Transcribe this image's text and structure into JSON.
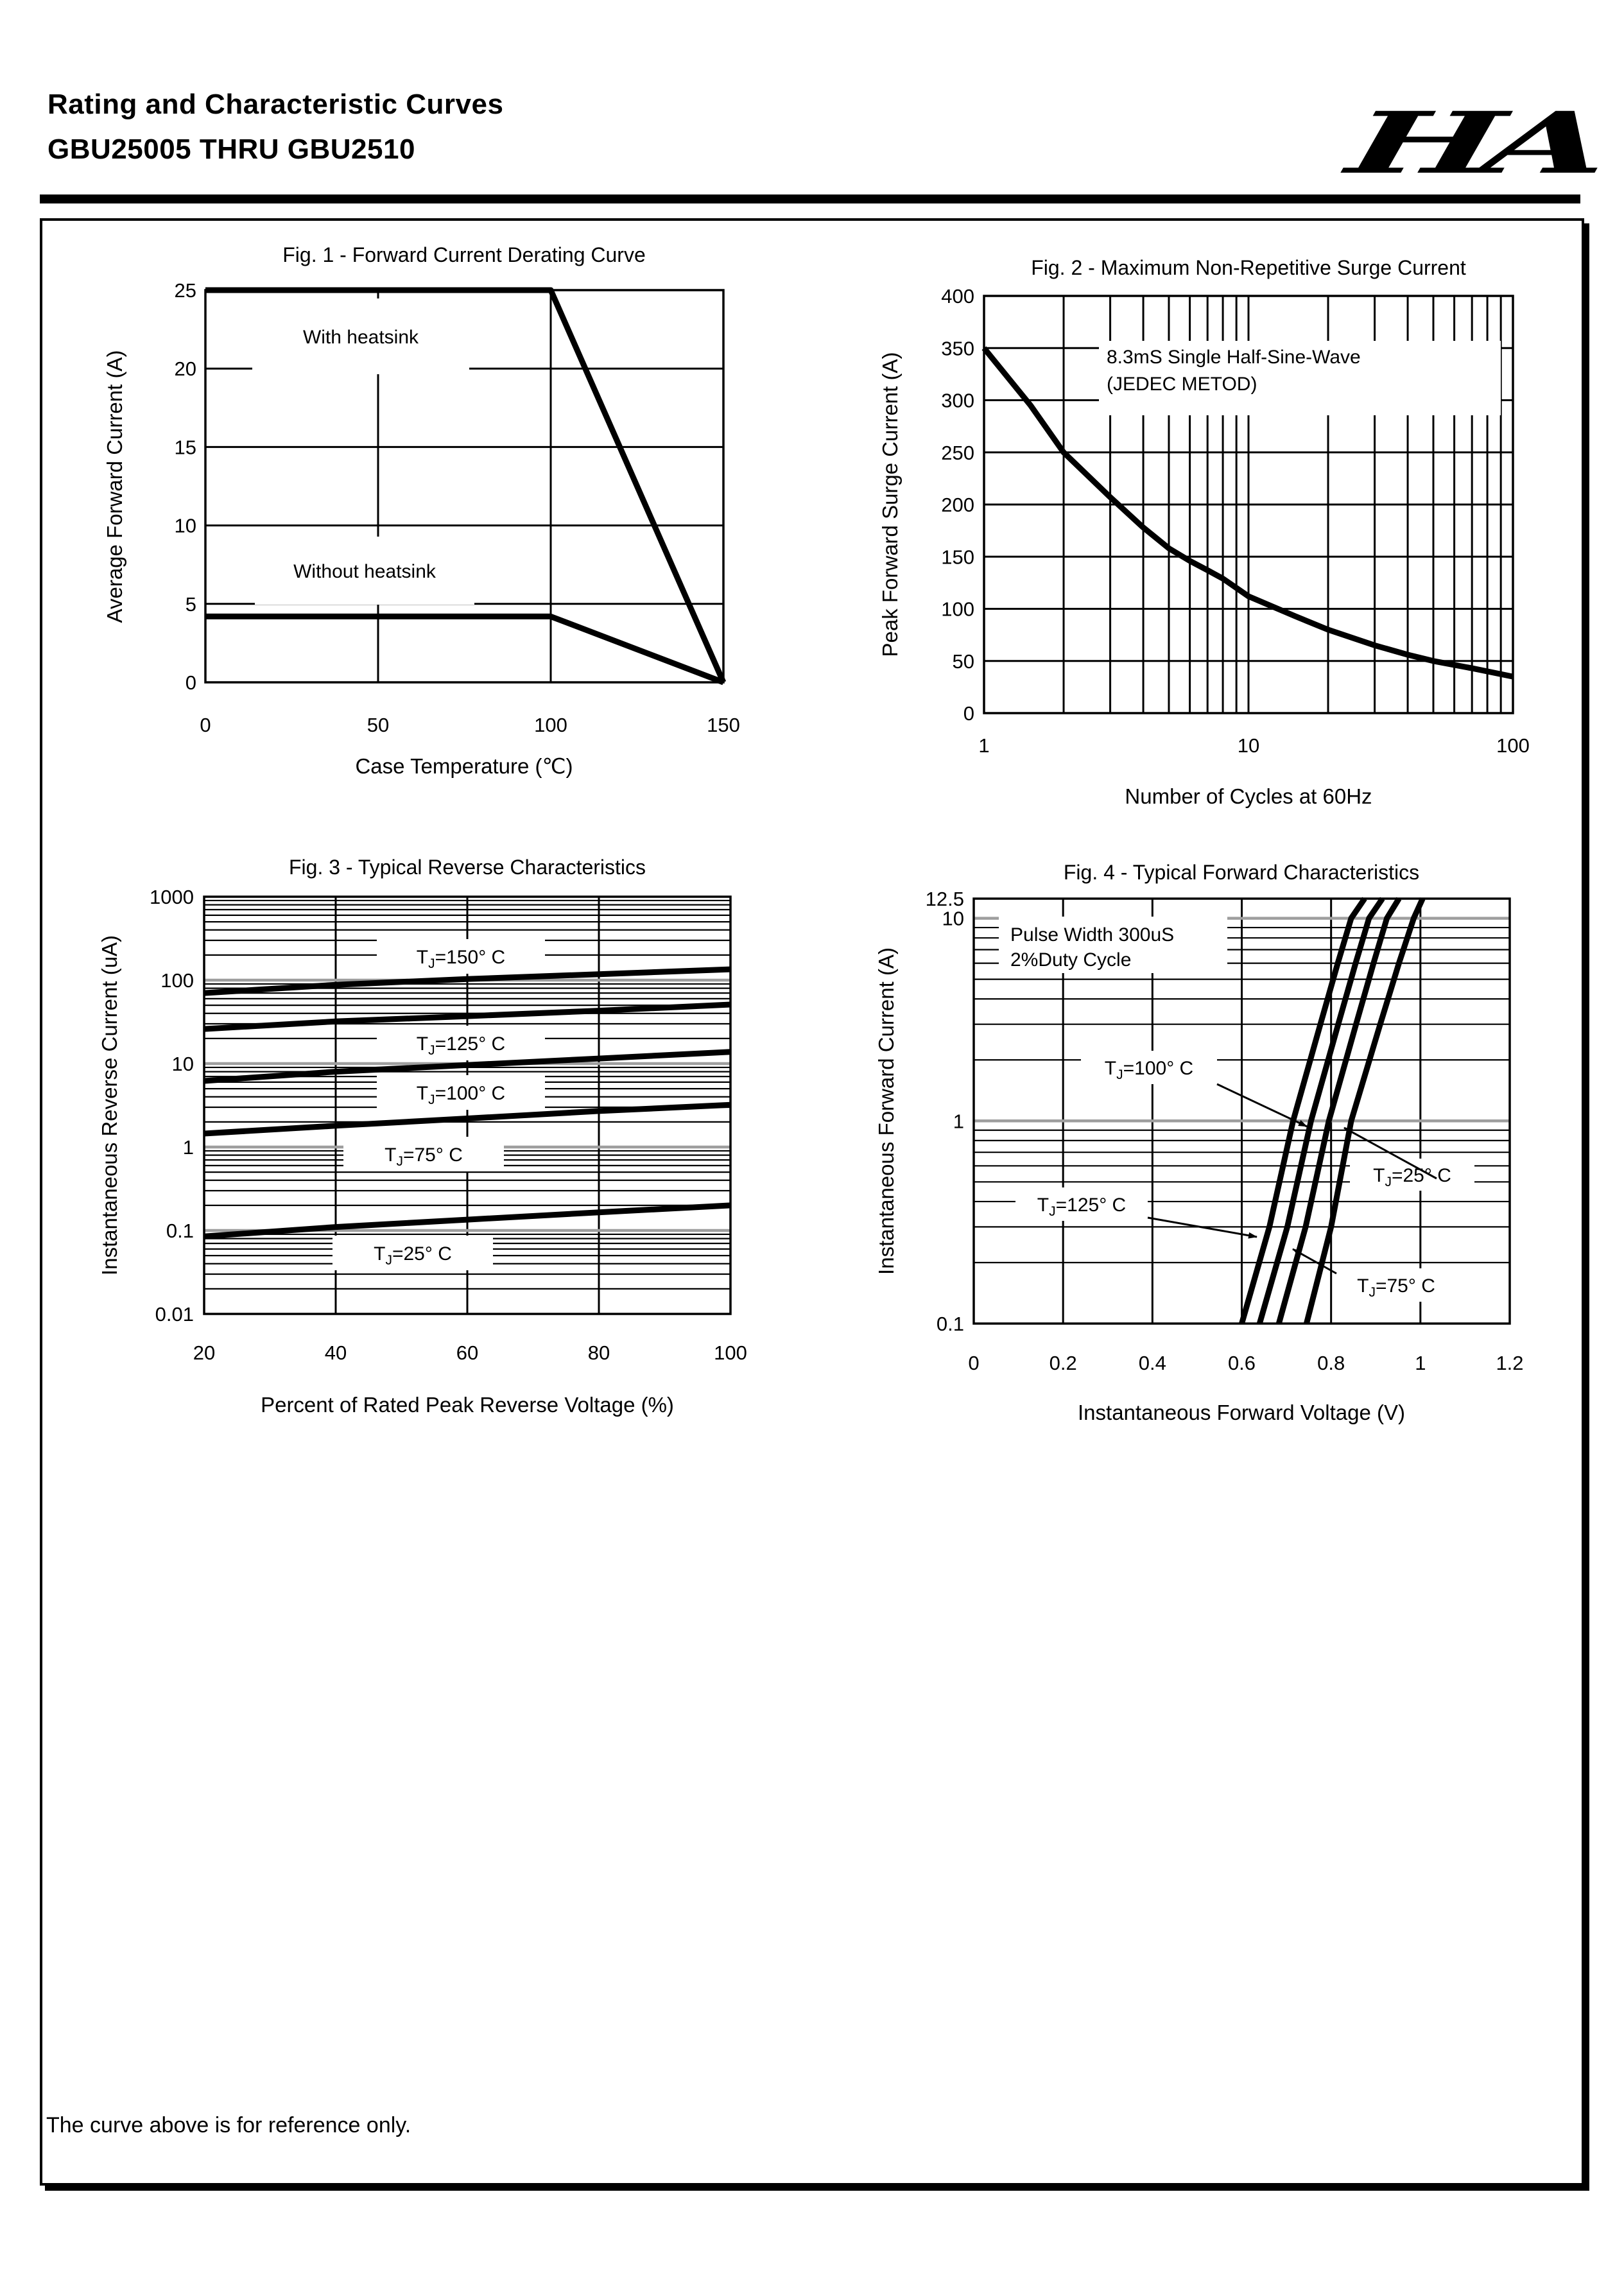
{
  "header": {
    "title": "Rating and Characteristic Curves",
    "subtitle": "GBU25005 THRU GBU2510",
    "logo_text": "HA"
  },
  "footer": {
    "note": "The curve above is for reference only."
  },
  "colors": {
    "ink": "#000000",
    "grid_gray": "#9e9e9e",
    "paper": "#ffffff"
  },
  "chart_data": [
    {
      "id": "fig1",
      "type": "line",
      "title": "Fig. 1 - Forward Current Derating Curve",
      "xlabel": "Case Temperature (℃)",
      "ylabel": "Average Forward Current (A)",
      "xscale": "linear",
      "yscale": "linear",
      "xlim": [
        0,
        150
      ],
      "ylim": [
        0,
        25
      ],
      "xticks": [
        0,
        50,
        100,
        150
      ],
      "xtick_labels": [
        "0",
        "50",
        "100",
        "150"
      ],
      "yticks": [
        0,
        5,
        10,
        15,
        20,
        25
      ],
      "ytick_labels": [
        "0",
        "5",
        "10",
        "15",
        "20",
        "25"
      ],
      "grid": "on",
      "legend_position": "inline-labels",
      "series": [
        {
          "name": "With heatsink",
          "points": [
            [
              0,
              25
            ],
            [
              100,
              25
            ],
            [
              150,
              0
            ]
          ]
        },
        {
          "name": "Without heatsink",
          "points": [
            [
              0,
              4.2
            ],
            [
              100,
              4.2
            ],
            [
              150,
              0
            ]
          ]
        }
      ]
    },
    {
      "id": "fig2",
      "type": "line",
      "title": "Fig. 2 - Maximum Non-Repetitive Surge Current",
      "xlabel": "Number of Cycles at 60Hz",
      "ylabel": "Peak Forward Surge Current (A)",
      "xscale": "log",
      "yscale": "linear",
      "xlim": [
        1,
        100
      ],
      "ylim": [
        0,
        400
      ],
      "xticks": [
        1,
        10,
        100
      ],
      "xtick_labels": [
        "1",
        "10",
        "100"
      ],
      "yticks": [
        0,
        50,
        100,
        150,
        200,
        250,
        300,
        350,
        400
      ],
      "ytick_labels": [
        "0",
        "50",
        "100",
        "150",
        "200",
        "250",
        "300",
        "350",
        "400"
      ],
      "grid": "on",
      "annotation": {
        "lines": [
          "8.3mS Single Half-Sine-Wave",
          "(JEDEC METOD)"
        ]
      },
      "series": [
        {
          "name": "Surge current",
          "points": [
            [
              1,
              350
            ],
            [
              1.5,
              295
            ],
            [
              2,
              250
            ],
            [
              3,
              207
            ],
            [
              4,
              178
            ],
            [
              5,
              158
            ],
            [
              6,
              146
            ],
            [
              7,
              137
            ],
            [
              8,
              129
            ],
            [
              10,
              112
            ],
            [
              15,
              93
            ],
            [
              20,
              80
            ],
            [
              30,
              65
            ],
            [
              40,
              56
            ],
            [
              50,
              50
            ],
            [
              70,
              43
            ],
            [
              100,
              35
            ]
          ]
        }
      ]
    },
    {
      "id": "fig3",
      "type": "line",
      "title": "Fig. 3 - Typical Reverse Characteristics",
      "xlabel": "Percent of Rated Peak Reverse Voltage (%)",
      "ylabel": "Instantaneous Reverse Current (uA)",
      "xscale": "linear",
      "yscale": "log",
      "xlim": [
        20,
        100
      ],
      "ylim": [
        0.01,
        1000
      ],
      "xticks": [
        20,
        40,
        60,
        80,
        100
      ],
      "xtick_labels": [
        "20",
        "40",
        "60",
        "80",
        "100"
      ],
      "yticks": [
        1000,
        100,
        10,
        1,
        0.1,
        0.01
      ],
      "ytick_labels": [
        "1000",
        "100",
        "10",
        "1",
        "0.1",
        "0.01"
      ],
      "grid": "on",
      "series": [
        {
          "label": {
            "pre": "T",
            "sub": "J",
            "post": "=150° C"
          },
          "points": [
            [
              20,
              70
            ],
            [
              40,
              88
            ],
            [
              60,
              103
            ],
            [
              80,
              118
            ],
            [
              100,
              135
            ]
          ]
        },
        {
          "label": {
            "pre": "T",
            "sub": "J",
            "post": "=125° C"
          },
          "points": [
            [
              20,
              26
            ],
            [
              40,
              32
            ],
            [
              60,
              37
            ],
            [
              80,
              43
            ],
            [
              100,
              51
            ]
          ]
        },
        {
          "label": {
            "pre": "T",
            "sub": "J",
            "post": "=100° C"
          },
          "points": [
            [
              20,
              6.2
            ],
            [
              40,
              8
            ],
            [
              60,
              9.6
            ],
            [
              80,
              11.5
            ],
            [
              100,
              13.8
            ]
          ]
        },
        {
          "label": {
            "pre": "T",
            "sub": "J",
            "post": "=75° C"
          },
          "points": [
            [
              20,
              1.45
            ],
            [
              40,
              1.8
            ],
            [
              60,
              2.2
            ],
            [
              80,
              2.7
            ],
            [
              100,
              3.2
            ]
          ]
        },
        {
          "label": {
            "pre": "T",
            "sub": "J",
            "post": "=25° C"
          },
          "points": [
            [
              20,
              0.085
            ],
            [
              40,
              0.11
            ],
            [
              60,
              0.135
            ],
            [
              80,
              0.165
            ],
            [
              100,
              0.2
            ]
          ]
        }
      ]
    },
    {
      "id": "fig4",
      "type": "line",
      "title": "Fig. 4 - Typical Forward Characteristics",
      "xlabel": "Instantaneous Forward Voltage (V)",
      "ylabel": "Instantaneous Forward Current (A)",
      "xscale": "linear",
      "yscale": "log",
      "xlim": [
        0,
        1.2
      ],
      "ylim": [
        0.1,
        12.5
      ],
      "xticks": [
        0,
        0.2,
        0.4,
        0.6,
        0.8,
        1,
        1.2
      ],
      "xtick_labels": [
        "0",
        "0.2",
        "0.4",
        "0.6",
        "0.8",
        "1",
        "1.2"
      ],
      "yticks": [
        12.5,
        10,
        1,
        0.1
      ],
      "ytick_labels": [
        "12.5",
        "10",
        "1",
        "0.1"
      ],
      "grid": "on",
      "annotation": {
        "lines": [
          "Pulse Width 300uS",
          "2%Duty Cycle"
        ]
      },
      "series": [
        {
          "label": {
            "pre": "T",
            "sub": "J",
            "post": "=125° C"
          },
          "points": [
            [
              0.6,
              0.1
            ],
            [
              0.662,
              0.3
            ],
            [
              0.715,
              1
            ],
            [
              0.776,
              3
            ],
            [
              0.815,
              6
            ],
            [
              0.845,
              10
            ],
            [
              0.875,
              12.5
            ]
          ]
        },
        {
          "label": {
            "pre": "T",
            "sub": "J",
            "post": "=100° C"
          },
          "points": [
            [
              0.64,
              0.1
            ],
            [
              0.702,
              0.3
            ],
            [
              0.755,
              1
            ],
            [
              0.816,
              3
            ],
            [
              0.855,
              6
            ],
            [
              0.885,
              10
            ],
            [
              0.915,
              12.5
            ]
          ]
        },
        {
          "label": {
            "pre": "T",
            "sub": "J",
            "post": "=75° C"
          },
          "points": [
            [
              0.683,
              0.1
            ],
            [
              0.743,
              0.3
            ],
            [
              0.795,
              1
            ],
            [
              0.856,
              3
            ],
            [
              0.895,
              6
            ],
            [
              0.925,
              10
            ],
            [
              0.952,
              12.5
            ]
          ]
        },
        {
          "label": {
            "pre": "T",
            "sub": "J",
            "post": "=25° C"
          },
          "points": [
            [
              0.745,
              0.1
            ],
            [
              0.8,
              0.3
            ],
            [
              0.845,
              1
            ],
            [
              0.91,
              3
            ],
            [
              0.952,
              6
            ],
            [
              0.985,
              10
            ],
            [
              1.005,
              12.5
            ]
          ]
        }
      ]
    }
  ]
}
